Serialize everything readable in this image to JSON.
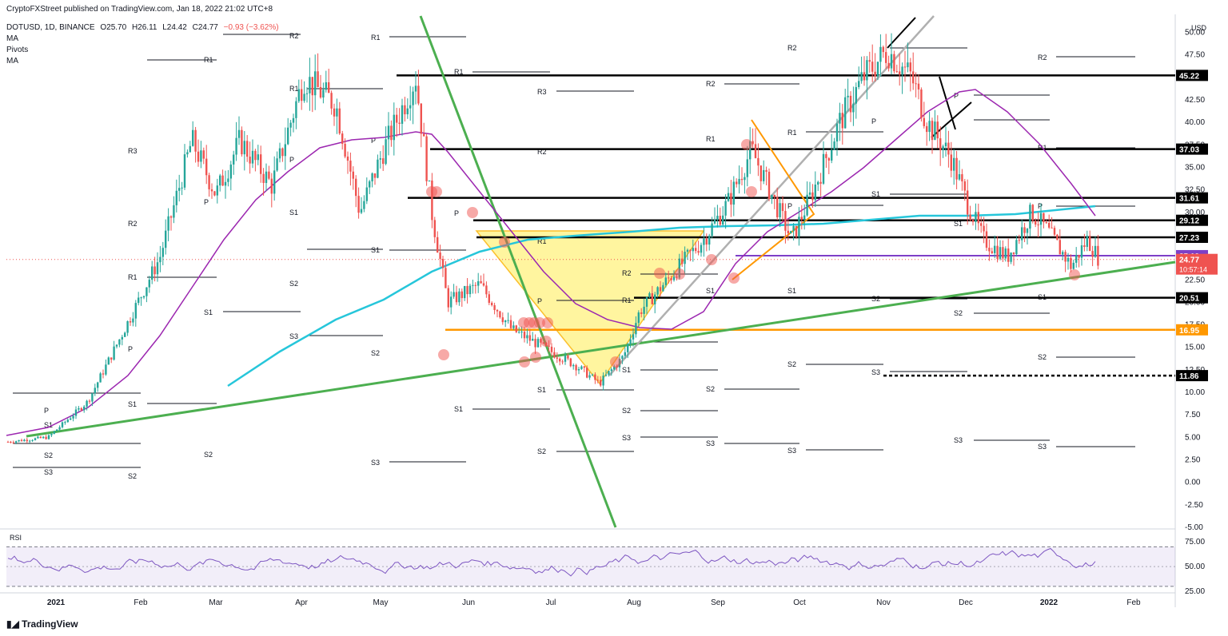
{
  "header": {
    "publisher": "CryptoFXStreet published on TradingView.com, Jan 18, 2022 21:02 UTC+8",
    "symbol": "DOTUSD, 1D, BINANCE",
    "ohlc": {
      "o": "O25.70",
      "h": "H26.11",
      "l": "L24.42",
      "c": "C24.77",
      "chg": "−0.93 (−3.62%)"
    },
    "indicators": [
      "MA",
      "Pivots",
      "MA"
    ]
  },
  "footer": {
    "brand": "TradingView"
  },
  "rsi_label": "RSI",
  "chart_data": {
    "type": "candlestick",
    "currency": "USD",
    "ylim": [
      -5,
      52
    ],
    "y_ticks": [
      "-5.00",
      "-2.50",
      "0.00",
      "2.50",
      "5.00",
      "7.50",
      "10.00",
      "12.50",
      "15.00",
      "17.50",
      "20.00",
      "22.50",
      "25.00",
      "27.50",
      "30.00",
      "32.50",
      "35.00",
      "37.50",
      "40.00",
      "42.50",
      "45.00",
      "47.50",
      "50.00"
    ],
    "x_ticks": [
      "2021",
      "Feb",
      "Mar",
      "Apr",
      "May",
      "Jun",
      "Jul",
      "Aug",
      "Sep",
      "Oct",
      "Nov",
      "Dec",
      "2022",
      "Feb"
    ],
    "last_price": {
      "value": "24.77",
      "countdown": "10:57:14",
      "color": "#ef5350"
    },
    "horizontal_levels": [
      {
        "value": 45.22,
        "label": "45.22",
        "color": "#000000"
      },
      {
        "value": 37.03,
        "label": "37.03",
        "color": "#000000"
      },
      {
        "value": 31.61,
        "label": "31.61",
        "color": "#000000"
      },
      {
        "value": 29.12,
        "label": "29.12",
        "color": "#000000"
      },
      {
        "value": 27.23,
        "label": "27.23",
        "color": "#000000"
      },
      {
        "value": 25.19,
        "label": "25.19",
        "color": "#7e3fc7"
      },
      {
        "value": 20.51,
        "label": "20.51",
        "color": "#000000"
      },
      {
        "value": 16.95,
        "label": "16.95",
        "color": "#ff9800"
      },
      {
        "value": 11.86,
        "label": "11.86",
        "color": "#000000"
      }
    ],
    "pivot_labels": [
      "R3",
      "R2",
      "R1",
      "P",
      "S1",
      "S2",
      "S3"
    ],
    "rsi": {
      "ylim": [
        25,
        80
      ],
      "ticks": [
        "75.00",
        "50.00",
        "25.00"
      ],
      "band": [
        30,
        70
      ]
    },
    "colors": {
      "up": "#26a69a",
      "down": "#ef5350",
      "ma_fast": "#9c27b0",
      "ma_slow": "#26c6da",
      "trend": "#4caf50",
      "triangle": "#fff176",
      "rsi": "#7e57c2"
    }
  }
}
